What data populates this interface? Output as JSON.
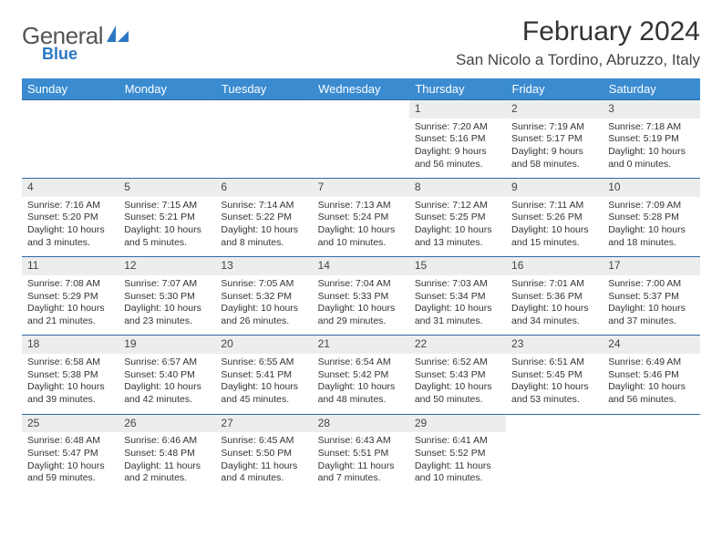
{
  "brand": {
    "name1": "General",
    "name2": "Blue",
    "accent": "#2b78c2"
  },
  "title": "February 2024",
  "location": "San Nicolo a Tordino, Abruzzo, Italy",
  "colors": {
    "header_bg": "#3a8bd0",
    "day_bg": "#eceeee",
    "rule": "#2f6aa0"
  },
  "day_headers": [
    "Sunday",
    "Monday",
    "Tuesday",
    "Wednesday",
    "Thursday",
    "Friday",
    "Saturday"
  ],
  "weeks": [
    {
      "nums": [
        "",
        "",
        "",
        "",
        "1",
        "2",
        "3"
      ],
      "cells": [
        null,
        null,
        null,
        null,
        {
          "sr": "7:20 AM",
          "ss": "5:16 PM",
          "dl": "9 hours and 56 minutes."
        },
        {
          "sr": "7:19 AM",
          "ss": "5:17 PM",
          "dl": "9 hours and 58 minutes."
        },
        {
          "sr": "7:18 AM",
          "ss": "5:19 PM",
          "dl": "10 hours and 0 minutes."
        }
      ]
    },
    {
      "nums": [
        "4",
        "5",
        "6",
        "7",
        "8",
        "9",
        "10"
      ],
      "cells": [
        {
          "sr": "7:16 AM",
          "ss": "5:20 PM",
          "dl": "10 hours and 3 minutes."
        },
        {
          "sr": "7:15 AM",
          "ss": "5:21 PM",
          "dl": "10 hours and 5 minutes."
        },
        {
          "sr": "7:14 AM",
          "ss": "5:22 PM",
          "dl": "10 hours and 8 minutes."
        },
        {
          "sr": "7:13 AM",
          "ss": "5:24 PM",
          "dl": "10 hours and 10 minutes."
        },
        {
          "sr": "7:12 AM",
          "ss": "5:25 PM",
          "dl": "10 hours and 13 minutes."
        },
        {
          "sr": "7:11 AM",
          "ss": "5:26 PM",
          "dl": "10 hours and 15 minutes."
        },
        {
          "sr": "7:09 AM",
          "ss": "5:28 PM",
          "dl": "10 hours and 18 minutes."
        }
      ]
    },
    {
      "nums": [
        "11",
        "12",
        "13",
        "14",
        "15",
        "16",
        "17"
      ],
      "cells": [
        {
          "sr": "7:08 AM",
          "ss": "5:29 PM",
          "dl": "10 hours and 21 minutes."
        },
        {
          "sr": "7:07 AM",
          "ss": "5:30 PM",
          "dl": "10 hours and 23 minutes."
        },
        {
          "sr": "7:05 AM",
          "ss": "5:32 PM",
          "dl": "10 hours and 26 minutes."
        },
        {
          "sr": "7:04 AM",
          "ss": "5:33 PM",
          "dl": "10 hours and 29 minutes."
        },
        {
          "sr": "7:03 AM",
          "ss": "5:34 PM",
          "dl": "10 hours and 31 minutes."
        },
        {
          "sr": "7:01 AM",
          "ss": "5:36 PM",
          "dl": "10 hours and 34 minutes."
        },
        {
          "sr": "7:00 AM",
          "ss": "5:37 PM",
          "dl": "10 hours and 37 minutes."
        }
      ]
    },
    {
      "nums": [
        "18",
        "19",
        "20",
        "21",
        "22",
        "23",
        "24"
      ],
      "cells": [
        {
          "sr": "6:58 AM",
          "ss": "5:38 PM",
          "dl": "10 hours and 39 minutes."
        },
        {
          "sr": "6:57 AM",
          "ss": "5:40 PM",
          "dl": "10 hours and 42 minutes."
        },
        {
          "sr": "6:55 AM",
          "ss": "5:41 PM",
          "dl": "10 hours and 45 minutes."
        },
        {
          "sr": "6:54 AM",
          "ss": "5:42 PM",
          "dl": "10 hours and 48 minutes."
        },
        {
          "sr": "6:52 AM",
          "ss": "5:43 PM",
          "dl": "10 hours and 50 minutes."
        },
        {
          "sr": "6:51 AM",
          "ss": "5:45 PM",
          "dl": "10 hours and 53 minutes."
        },
        {
          "sr": "6:49 AM",
          "ss": "5:46 PM",
          "dl": "10 hours and 56 minutes."
        }
      ]
    },
    {
      "nums": [
        "25",
        "26",
        "27",
        "28",
        "29",
        "",
        ""
      ],
      "cells": [
        {
          "sr": "6:48 AM",
          "ss": "5:47 PM",
          "dl": "10 hours and 59 minutes."
        },
        {
          "sr": "6:46 AM",
          "ss": "5:48 PM",
          "dl": "11 hours and 2 minutes."
        },
        {
          "sr": "6:45 AM",
          "ss": "5:50 PM",
          "dl": "11 hours and 4 minutes."
        },
        {
          "sr": "6:43 AM",
          "ss": "5:51 PM",
          "dl": "11 hours and 7 minutes."
        },
        {
          "sr": "6:41 AM",
          "ss": "5:52 PM",
          "dl": "11 hours and 10 minutes."
        },
        null,
        null
      ]
    }
  ],
  "labels": {
    "sunrise": "Sunrise: ",
    "sunset": "Sunset: ",
    "daylight": "Daylight: "
  }
}
